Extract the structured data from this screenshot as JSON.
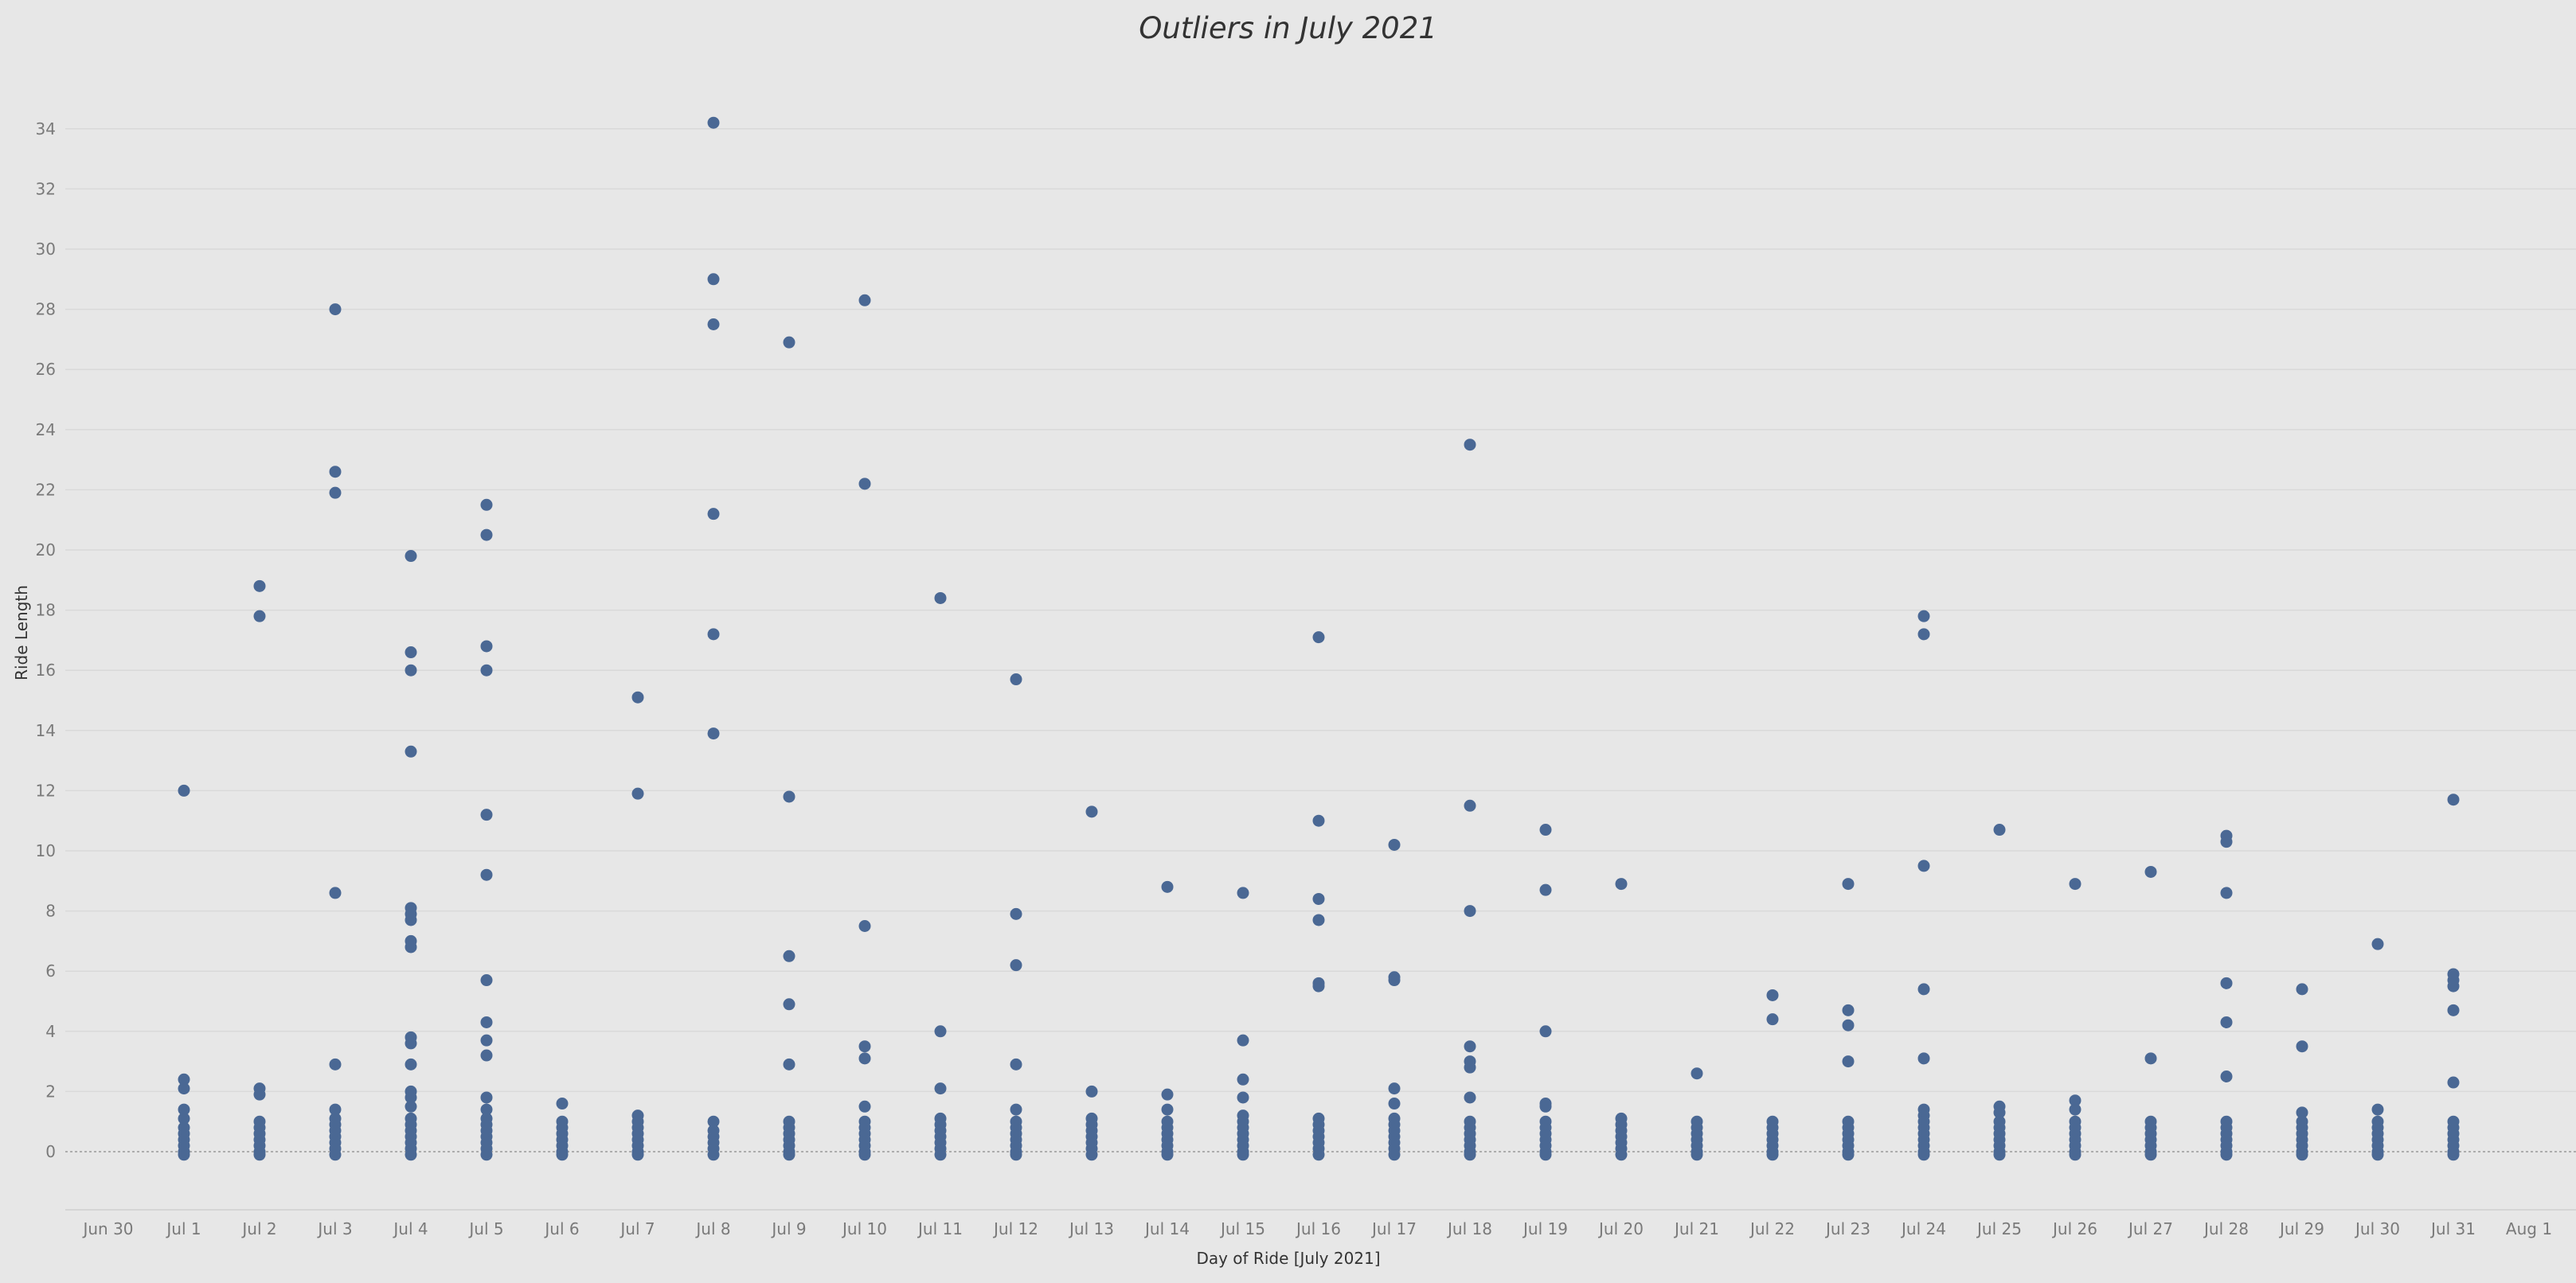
{
  "chart_data": {
    "type": "scatter",
    "title": "Outliers in July 2021",
    "xlabel": "Day of Ride [July 2021]",
    "ylabel": "Ride Length",
    "ylim": [
      -1.5,
      36
    ],
    "y_ticks": [
      0,
      2,
      4,
      6,
      8,
      10,
      12,
      14,
      16,
      18,
      20,
      22,
      24,
      26,
      28,
      30,
      32,
      34
    ],
    "categories": [
      "Jun 30",
      "Jul 1",
      "Jul 2",
      "Jul 3",
      "Jul 4",
      "Jul 5",
      "Jul 6",
      "Jul 7",
      "Jul 8",
      "Jul 9",
      "Jul 10",
      "Jul 11",
      "Jul 12",
      "Jul 13",
      "Jul 14",
      "Jul 15",
      "Jul 16",
      "Jul 17",
      "Jul 18",
      "Jul 19",
      "Jul 20",
      "Jul 21",
      "Jul 22",
      "Jul 23",
      "Jul 24",
      "Jul 25",
      "Jul 26",
      "Jul 27",
      "Jul 28",
      "Jul 29",
      "Jul 30",
      "Jul 31",
      "Aug 1"
    ],
    "grid": true,
    "marker_color": "#4a6894",
    "series": [
      {
        "points": [
          {
            "x": "Jul 1",
            "y": [
              12.0,
              2.4,
              2.1,
              1.4,
              1.1,
              0.8,
              0.6,
              0.4,
              0.2,
              0.0,
              -0.1
            ]
          },
          {
            "x": "Jul 2",
            "y": [
              18.8,
              17.8,
              2.1,
              1.9,
              1.0,
              0.8,
              0.6,
              0.4,
              0.2,
              0.0,
              -0.1
            ]
          },
          {
            "x": "Jul 3",
            "y": [
              28.0,
              22.6,
              21.9,
              8.6,
              2.9,
              1.4,
              1.1,
              0.9,
              0.7,
              0.5,
              0.3,
              0.1,
              -0.1
            ]
          },
          {
            "x": "Jul 4",
            "y": [
              19.8,
              16.6,
              16.0,
              13.3,
              8.1,
              7.9,
              7.7,
              7.0,
              6.8,
              3.8,
              3.6,
              2.9,
              2.0,
              1.8,
              1.5,
              1.1,
              0.9,
              0.7,
              0.5,
              0.3,
              0.1,
              -0.1
            ]
          },
          {
            "x": "Jul 5",
            "y": [
              21.5,
              20.5,
              16.8,
              16.0,
              11.2,
              9.2,
              5.7,
              4.3,
              3.7,
              3.2,
              1.8,
              1.4,
              1.1,
              0.9,
              0.7,
              0.5,
              0.3,
              0.1,
              -0.1
            ]
          },
          {
            "x": "Jul 6",
            "y": [
              1.6,
              1.0,
              0.8,
              0.6,
              0.4,
              0.2,
              0.0,
              -0.1
            ]
          },
          {
            "x": "Jul 7",
            "y": [
              15.1,
              11.9,
              1.2,
              1.0,
              0.8,
              0.6,
              0.4,
              0.2,
              0.0,
              -0.1
            ]
          },
          {
            "x": "Jul 8",
            "y": [
              34.2,
              29.0,
              27.5,
              21.2,
              17.2,
              13.9,
              1.0,
              0.7,
              0.5,
              0.3,
              0.1,
              -0.1
            ]
          },
          {
            "x": "Jul 9",
            "y": [
              26.9,
              11.8,
              6.5,
              4.9,
              2.9,
              1.0,
              0.8,
              0.6,
              0.4,
              0.2,
              0.0,
              -0.1
            ]
          },
          {
            "x": "Jul 10",
            "y": [
              28.3,
              22.2,
              7.5,
              3.5,
              3.1,
              1.5,
              1.0,
              0.8,
              0.6,
              0.4,
              0.2,
              0.0,
              -0.1
            ]
          },
          {
            "x": "Jul 11",
            "y": [
              18.4,
              4.0,
              2.1,
              1.1,
              0.9,
              0.7,
              0.5,
              0.3,
              0.1,
              -0.1
            ]
          },
          {
            "x": "Jul 12",
            "y": [
              15.7,
              7.9,
              6.2,
              2.9,
              1.4,
              1.0,
              0.8,
              0.6,
              0.4,
              0.2,
              0.0,
              -0.1
            ]
          },
          {
            "x": "Jul 13",
            "y": [
              11.3,
              2.0,
              1.1,
              0.9,
              0.7,
              0.5,
              0.3,
              0.1,
              -0.1
            ]
          },
          {
            "x": "Jul 14",
            "y": [
              8.8,
              1.9,
              1.4,
              1.0,
              0.8,
              0.6,
              0.4,
              0.2,
              0.0,
              -0.1
            ]
          },
          {
            "x": "Jul 15",
            "y": [
              8.6,
              3.7,
              2.4,
              1.8,
              1.2,
              1.0,
              0.8,
              0.6,
              0.4,
              0.2,
              0.0,
              -0.1
            ]
          },
          {
            "x": "Jul 16",
            "y": [
              17.1,
              11.0,
              8.4,
              7.7,
              5.6,
              5.5,
              1.1,
              0.9,
              0.7,
              0.5,
              0.3,
              0.1,
              -0.1
            ]
          },
          {
            "x": "Jul 17",
            "y": [
              10.2,
              5.8,
              5.7,
              2.1,
              1.6,
              1.1,
              0.9,
              0.7,
              0.5,
              0.3,
              0.1,
              -0.1
            ]
          },
          {
            "x": "Jul 18",
            "y": [
              23.5,
              11.5,
              8.0,
              3.5,
              3.0,
              2.8,
              1.8,
              1.0,
              0.8,
              0.6,
              0.4,
              0.2,
              0.0,
              -0.1
            ]
          },
          {
            "x": "Jul 19",
            "y": [
              10.7,
              8.7,
              4.0,
              1.6,
              1.5,
              1.0,
              0.8,
              0.6,
              0.4,
              0.2,
              0.0,
              -0.1
            ]
          },
          {
            "x": "Jul 20",
            "y": [
              8.9,
              1.1,
              0.9,
              0.7,
              0.5,
              0.3,
              0.1,
              -0.1
            ]
          },
          {
            "x": "Jul 21",
            "y": [
              2.6,
              1.0,
              0.8,
              0.6,
              0.4,
              0.2,
              0.0,
              -0.1
            ]
          },
          {
            "x": "Jul 22",
            "y": [
              5.2,
              4.4,
              1.0,
              0.8,
              0.6,
              0.4,
              0.2,
              0.0,
              -0.1
            ]
          },
          {
            "x": "Jul 23",
            "y": [
              8.9,
              4.7,
              4.2,
              3.0,
              1.0,
              0.8,
              0.6,
              0.4,
              0.2,
              0.0,
              -0.1
            ]
          },
          {
            "x": "Jul 24",
            "y": [
              17.8,
              17.2,
              9.5,
              5.4,
              3.1,
              1.4,
              1.2,
              1.0,
              0.8,
              0.6,
              0.4,
              0.2,
              0.0,
              -0.1
            ]
          },
          {
            "x": "Jul 25",
            "y": [
              10.7,
              1.5,
              1.3,
              1.0,
              0.8,
              0.6,
              0.4,
              0.2,
              0.0,
              -0.1
            ]
          },
          {
            "x": "Jul 26",
            "y": [
              8.9,
              1.7,
              1.4,
              1.0,
              0.8,
              0.6,
              0.4,
              0.2,
              0.0,
              -0.1
            ]
          },
          {
            "x": "Jul 27",
            "y": [
              9.3,
              3.1,
              1.0,
              0.8,
              0.6,
              0.4,
              0.2,
              0.0,
              -0.1
            ]
          },
          {
            "x": "Jul 28",
            "y": [
              10.5,
              10.3,
              8.6,
              5.6,
              4.3,
              2.5,
              1.0,
              0.8,
              0.6,
              0.4,
              0.2,
              0.0,
              -0.1
            ]
          },
          {
            "x": "Jul 29",
            "y": [
              5.4,
              3.5,
              1.3,
              1.0,
              0.8,
              0.6,
              0.4,
              0.2,
              0.0,
              -0.1
            ]
          },
          {
            "x": "Jul 30",
            "y": [
              6.9,
              1.4,
              1.0,
              0.8,
              0.6,
              0.4,
              0.2,
              0.0,
              -0.1
            ]
          },
          {
            "x": "Jul 31",
            "y": [
              11.7,
              5.9,
              5.7,
              5.5,
              4.7,
              2.3,
              1.0,
              0.8,
              0.6,
              0.4,
              0.2,
              0.0,
              -0.1
            ]
          }
        ]
      }
    ]
  }
}
